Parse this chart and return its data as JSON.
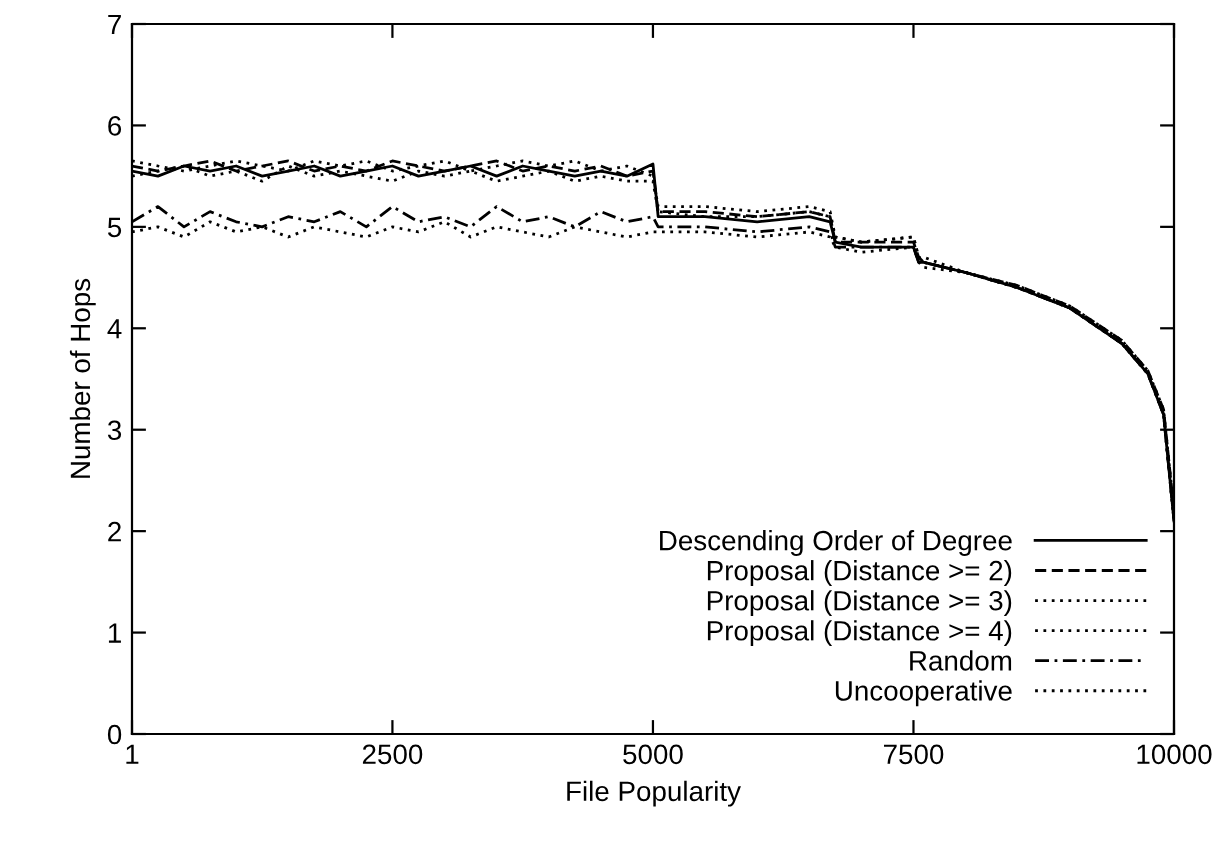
{
  "chart_data": {
    "type": "line",
    "xlabel": "File Popularity",
    "ylabel": "Number of Hops",
    "x": [
      1,
      250,
      500,
      750,
      1000,
      1250,
      1500,
      1750,
      2000,
      2250,
      2500,
      2750,
      3000,
      3250,
      3500,
      3750,
      4000,
      4250,
      4500,
      4750,
      5000,
      5050,
      5500,
      6000,
      6500,
      6700,
      6750,
      7000,
      7500,
      7550,
      7600,
      8000,
      8500,
      9000,
      9500,
      9750,
      9900,
      10000
    ],
    "xlim": [
      1,
      10000
    ],
    "xticks": [
      1,
      2500,
      5000,
      7500,
      10000
    ],
    "ylim": [
      0,
      7
    ],
    "yticks": [
      0,
      1,
      2,
      3,
      4,
      5,
      6,
      7
    ],
    "grid": false,
    "legend": "bottom right",
    "marker": "none",
    "series": [
      {
        "name": "Descending Order of Degree",
        "color": "#000000",
        "line_style": "solid",
        "values": [
          5.55,
          5.5,
          5.6,
          5.55,
          5.6,
          5.5,
          5.55,
          5.6,
          5.5,
          5.55,
          5.6,
          5.5,
          5.55,
          5.6,
          5.5,
          5.6,
          5.55,
          5.5,
          5.55,
          5.5,
          5.62,
          5.1,
          5.1,
          5.05,
          5.1,
          5.05,
          4.85,
          4.8,
          4.8,
          4.65,
          4.65,
          4.55,
          4.4,
          4.2,
          3.85,
          3.55,
          3.15,
          2.1
        ]
      },
      {
        "name": "Proposal (Distance >= 2)",
        "color": "#000000",
        "line_style": "dashed",
        "values": [
          5.6,
          5.55,
          5.6,
          5.65,
          5.55,
          5.6,
          5.65,
          5.55,
          5.6,
          5.55,
          5.65,
          5.6,
          5.55,
          5.6,
          5.65,
          5.55,
          5.6,
          5.55,
          5.6,
          5.5,
          5.55,
          5.15,
          5.15,
          5.1,
          5.15,
          5.1,
          4.85,
          4.85,
          4.85,
          4.7,
          4.65,
          4.55,
          4.42,
          4.22,
          3.88,
          3.58,
          3.2,
          2.2
        ]
      },
      {
        "name": "Proposal (Distance >= 3)",
        "color": "#000000",
        "line_style": "dotted",
        "values": [
          5.65,
          5.6,
          5.55,
          5.6,
          5.65,
          5.6,
          5.55,
          5.65,
          5.6,
          5.65,
          5.55,
          5.6,
          5.65,
          5.55,
          5.6,
          5.65,
          5.6,
          5.65,
          5.55,
          5.6,
          5.5,
          5.2,
          5.2,
          5.15,
          5.2,
          5.15,
          4.9,
          4.85,
          4.9,
          4.7,
          4.7,
          4.55,
          4.42,
          4.22,
          3.88,
          3.58,
          3.2,
          2.2
        ]
      },
      {
        "name": "Proposal (Distance >= 4)",
        "color": "#000000",
        "line_style": "dotted",
        "values": [
          5.5,
          5.55,
          5.6,
          5.5,
          5.55,
          5.45,
          5.6,
          5.5,
          5.55,
          5.5,
          5.45,
          5.55,
          5.5,
          5.55,
          5.45,
          5.5,
          5.55,
          5.45,
          5.5,
          5.45,
          5.45,
          5.15,
          5.1,
          5.1,
          5.15,
          5.1,
          4.9,
          4.85,
          4.9,
          4.7,
          4.65,
          4.55,
          4.4,
          4.2,
          3.85,
          3.55,
          3.15,
          2.1
        ]
      },
      {
        "name": "Random",
        "color": "#000000",
        "line_style": "dashdot",
        "values": [
          5.05,
          5.2,
          5.0,
          5.15,
          5.05,
          5.0,
          5.1,
          5.05,
          5.15,
          5.0,
          5.2,
          5.05,
          5.1,
          5.0,
          5.2,
          5.05,
          5.1,
          5.0,
          5.15,
          5.05,
          5.1,
          5.0,
          5.0,
          4.95,
          5.0,
          4.95,
          4.8,
          4.8,
          4.8,
          4.65,
          4.65,
          4.55,
          4.4,
          4.2,
          3.85,
          3.55,
          3.15,
          2.1
        ]
      },
      {
        "name": "Uncooperative",
        "color": "#000000",
        "line_style": "dotted",
        "values": [
          4.95,
          5.0,
          4.9,
          5.05,
          4.95,
          5.0,
          4.9,
          5.0,
          4.95,
          4.9,
          5.0,
          4.95,
          5.05,
          4.9,
          5.0,
          4.95,
          4.9,
          5.0,
          4.95,
          4.9,
          4.95,
          4.95,
          4.95,
          4.9,
          4.95,
          4.9,
          4.8,
          4.75,
          4.8,
          4.65,
          4.6,
          4.55,
          4.4,
          4.2,
          3.85,
          3.55,
          3.15,
          2.1
        ]
      }
    ]
  }
}
